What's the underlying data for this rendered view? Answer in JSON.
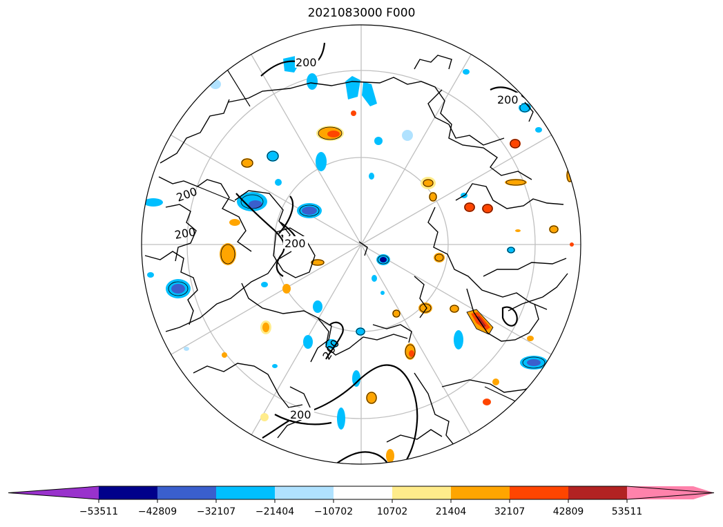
{
  "title": "2021083000 F000",
  "contour_labels": [
    "200",
    "200",
    "200",
    "200",
    "200",
    "200",
    "200"
  ],
  "colorbar": {
    "ticks": [
      "−53511",
      "−42809",
      "−32107",
      "−21404",
      "−10702",
      "10702",
      "21404",
      "32107",
      "42809",
      "53511"
    ],
    "colors": [
      "#9932CC",
      "#00008B",
      "#3A5FCD",
      "#00BFFF",
      "#B0E2FF",
      "#FFFFFF",
      "#FFEC8B",
      "#FFA500",
      "#FF4500",
      "#B22222",
      "#FF82AB"
    ]
  },
  "colors": {
    "grid": "#bfbfbf",
    "coastline": "#000000"
  }
}
